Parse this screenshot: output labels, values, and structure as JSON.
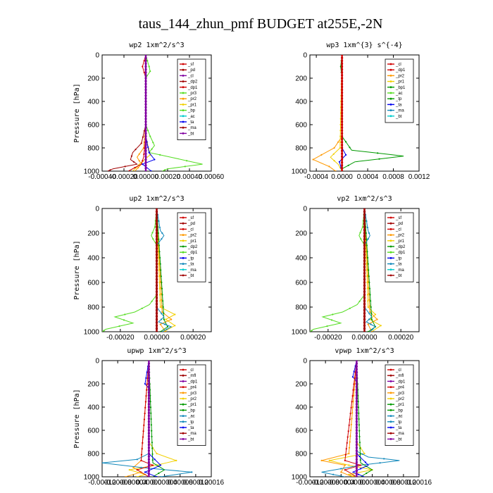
{
  "figure_title": "taus_144_zhun_pmf  BUDGET at255E,-2N",
  "colors": {
    "red": "#d00000",
    "darkred": "#a00000",
    "purple": "#8000a0",
    "orange": "#ff9900",
    "yellow": "#f2d000",
    "lightgreen": "#55dd22",
    "green": "#009900",
    "blue": "#0000ee",
    "teal": "#1188bb",
    "cyan": "#00cccc",
    "black": "#000000"
  },
  "chart_data": [
    {
      "type": "line",
      "title": "wp2  1xm^2/s^3",
      "ylabel": "Pressure [hPa]",
      "xlim": [
        -0.0004,
        0.0006
      ],
      "ylim": [
        1000,
        0
      ],
      "xticks": [
        "-0.00040",
        "-0.00020",
        "0.00000",
        "0.00020",
        "0.00040",
        "0.00060"
      ],
      "yticks": [
        "0",
        "200",
        "400",
        "600",
        "800",
        "1000"
      ],
      "legend": [
        "_sf",
        "_pd",
        "_cl",
        "_dp2",
        "_dp1",
        "_pr3",
        "_pr2",
        "_pr1",
        "_bp",
        "_ac",
        "_ta",
        "_ma",
        "_bt"
      ],
      "legend_position": "top-right",
      "series": [
        {
          "name": "_pr2",
          "color": "orange",
          "p": [
            0,
            600,
            800,
            880,
            940,
            1000
          ],
          "x": [
            0,
            0,
            -2e-05,
            -8e-05,
            -4e-05,
            -0.0001
          ]
        },
        {
          "name": "_pr1",
          "color": "yellow",
          "p": [
            0,
            700,
            860,
            940,
            1000
          ],
          "x": [
            0,
            0,
            4e-05,
            -6e-05,
            -0.00012
          ]
        },
        {
          "name": "_bp",
          "color": "lightgreen",
          "p": [
            0,
            100,
            140,
            200,
            600,
            700,
            780,
            840,
            880,
            940,
            980,
            1000
          ],
          "x": [
            0,
            3e-05,
            4e-05,
            0,
            0,
            4e-05,
            8e-05,
            3e-05,
            0.00023,
            0.00052,
            0.0002,
            0.00015
          ]
        },
        {
          "name": "_dp2",
          "color": "darkred",
          "p": [
            0,
            600,
            760,
            840,
            900,
            940,
            980,
            1000
          ],
          "x": [
            0,
            0,
            -4e-05,
            -0.00012,
            -0.00014,
            -8e-05,
            -0.0003,
            -0.00035
          ]
        },
        {
          "name": "_ta",
          "color": "blue",
          "p": [
            0,
            700,
            840,
            900,
            940,
            1000
          ],
          "x": [
            0,
            0,
            3e-05,
            8e-05,
            -3e-05,
            5e-05
          ]
        },
        {
          "name": "_dp1",
          "color": "red",
          "p": [
            0,
            100,
            200,
            700,
            880,
            940,
            1000
          ],
          "x": [
            0,
            -3e-05,
            0,
            0,
            -2e-05,
            -4e-05,
            -0.00016
          ]
        },
        {
          "name": "_bt",
          "color": "purple",
          "p": [
            0,
            1000
          ],
          "x": [
            0,
            0
          ]
        }
      ]
    },
    {
      "type": "line",
      "title": "wp3  1xm^{3} s^{-4}",
      "ylabel": "",
      "xlim": [
        -0.0005,
        0.0012
      ],
      "ylim": [
        1000,
        0
      ],
      "xticks": [
        "-0.0004",
        "0.0000",
        "0.0004",
        "0.0008",
        "0.0012"
      ],
      "yticks": [
        "0",
        "200",
        "400",
        "600",
        "800",
        "1000"
      ],
      "legend": [
        "_cl",
        "_dp1",
        "_pr2",
        "_pr1",
        "_bp1",
        "_ac",
        "_tp",
        "_ta",
        "_ma",
        "_bt"
      ],
      "legend_position": "top-right",
      "series": [
        {
          "name": "_pr2",
          "color": "orange",
          "p": [
            0,
            700,
            800,
            860,
            900,
            960,
            1000
          ],
          "x": [
            0,
            0,
            -0.00012,
            -0.00032,
            -0.00045,
            -0.0002,
            -0.0001
          ]
        },
        {
          "name": "_pr1",
          "color": "yellow",
          "p": [
            0,
            800,
            880,
            940,
            1000
          ],
          "x": [
            0,
            -3e-05,
            -0.00018,
            -6e-05,
            0
          ]
        },
        {
          "name": "_bp1",
          "color": "green",
          "p": [
            0,
            100,
            200,
            700,
            820,
            870,
            920,
            980,
            1000
          ],
          "x": [
            0,
            -2e-05,
            0,
            0,
            0.00015,
            0.00096,
            0.0002,
            0,
            0
          ]
        },
        {
          "name": "_ta",
          "color": "blue",
          "p": [
            0,
            800,
            860,
            920,
            1000
          ],
          "x": [
            0,
            0,
            6e-05,
            -4e-05,
            0
          ]
        },
        {
          "name": "_dp1",
          "color": "red",
          "p": [
            0,
            1000
          ],
          "x": [
            0,
            0
          ]
        }
      ]
    },
    {
      "type": "line",
      "title": "up2  1xm^2/s^3",
      "ylabel": "Pressure [hPa]",
      "xlim": [
        -0.0003,
        0.0003
      ],
      "ylim": [
        1000,
        0
      ],
      "xticks": [
        "-0.00020",
        "0.00000",
        "0.00020"
      ],
      "yticks": [
        "0",
        "200",
        "400",
        "600",
        "800",
        "1000"
      ],
      "legend": [
        "_sf",
        "_pd",
        "_cl",
        "_pr2",
        "_pr1",
        "_dp2",
        "_dp1",
        "_tp",
        "_ta",
        "_ma",
        "_bt"
      ],
      "legend_position": "top-right",
      "series": [
        {
          "name": "_dp1",
          "color": "lightgreen",
          "p": [
            0,
            150,
            220,
            300,
            700,
            780,
            840,
            880,
            930,
            980,
            1000
          ],
          "x": [
            0,
            -1e-05,
            -3e-05,
            0,
            0,
            -4e-05,
            -0.00012,
            -0.00023,
            -0.00013,
            -0.00028,
            -0.0003
          ]
        },
        {
          "name": "_pr1",
          "color": "yellow",
          "p": [
            0,
            800,
            860,
            900,
            950,
            1000
          ],
          "x": [
            0,
            2e-05,
            0.0001,
            5e-05,
            0.0001,
            4e-05
          ]
        },
        {
          "name": "_pr2",
          "color": "orange",
          "p": [
            0,
            840,
            900,
            940,
            1000
          ],
          "x": [
            0,
            3e-05,
            8e-05,
            2e-05,
            5e-05
          ]
        },
        {
          "name": "_dp2",
          "color": "green",
          "p": [
            0,
            900,
            960,
            1000
          ],
          "x": [
            0,
            4e-05,
            6e-05,
            2e-05
          ]
        },
        {
          "name": "_ta",
          "color": "teal",
          "p": [
            0,
            180,
            220,
            300,
            800,
            880,
            920,
            960,
            1000
          ],
          "x": [
            0,
            2e-05,
            4e-05,
            0,
            0,
            4e-05,
            1e-05,
            8e-05,
            3e-05
          ]
        },
        {
          "name": "_cl",
          "color": "red",
          "p": [
            0,
            1000
          ],
          "x": [
            0,
            0
          ]
        },
        {
          "name": "_bt",
          "color": "darkred",
          "p": [
            0,
            1000
          ],
          "x": [
            0,
            0
          ]
        }
      ]
    },
    {
      "type": "line",
      "title": "vp2  1xm^2/s^3",
      "ylabel": "",
      "xlim": [
        -0.0003,
        0.0003
      ],
      "ylim": [
        1000,
        0
      ],
      "xticks": [
        "-0.00020",
        "0.00000",
        "0.00020"
      ],
      "yticks": [
        "0",
        "200",
        "400",
        "600",
        "800",
        "1000"
      ],
      "legend": [
        "_sf",
        "_pd",
        "_cl",
        "_pr2",
        "_pr1",
        "_dp2",
        "_dp1",
        "_tp",
        "_ta",
        "_ma",
        "_bt"
      ],
      "legend_position": "top-right",
      "series": [
        {
          "name": "_dp1",
          "color": "lightgreen",
          "p": [
            0,
            150,
            220,
            300,
            700,
            780,
            840,
            880,
            930,
            980,
            1000
          ],
          "x": [
            0,
            -1e-05,
            -3e-05,
            0,
            0,
            -4e-05,
            -0.00012,
            -0.00023,
            -0.00013,
            -0.00028,
            -0.0003
          ]
        },
        {
          "name": "_pr1",
          "color": "yellow",
          "p": [
            0,
            800,
            860,
            900,
            950,
            1000
          ],
          "x": [
            0,
            2e-05,
            6e-05,
            3e-05,
            9e-05,
            4e-05
          ]
        },
        {
          "name": "_pr2",
          "color": "orange",
          "p": [
            0,
            840,
            900,
            940,
            1000
          ],
          "x": [
            0,
            3e-05,
            7e-05,
            2e-05,
            4e-05
          ]
        },
        {
          "name": "_dp2",
          "color": "green",
          "p": [
            0,
            900,
            960,
            1000
          ],
          "x": [
            0,
            4e-05,
            6e-05,
            2e-05
          ]
        },
        {
          "name": "_ta",
          "color": "teal",
          "p": [
            0,
            180,
            220,
            300,
            800,
            880,
            920,
            960,
            1000
          ],
          "x": [
            0,
            2e-05,
            3e-05,
            0,
            0,
            4e-05,
            1e-05,
            6e-05,
            3e-05
          ]
        },
        {
          "name": "_cl",
          "color": "red",
          "p": [
            0,
            1000
          ],
          "x": [
            0,
            0
          ]
        },
        {
          "name": "_bt",
          "color": "darkred",
          "p": [
            0,
            1000
          ],
          "x": [
            0,
            0
          ]
        }
      ]
    },
    {
      "type": "line",
      "title": "upwp   1xm^2/s^3",
      "ylabel": "Pressure [hPa]",
      "xlim": [
        -0.00012,
        0.00016
      ],
      "ylim": [
        1000,
        0
      ],
      "xticks": [
        "-0.00012",
        "-0.00008",
        "-0.00004",
        "0.00000",
        "0.00004",
        "0.00008",
        "0.00012",
        "0.00016"
      ],
      "yticks": [
        "0",
        "200",
        "400",
        "600",
        "800",
        "1000"
      ],
      "legend": [
        "_cl",
        "_mfl",
        "_dp1",
        "_pr4",
        "_pr3",
        "_pr2",
        "_pr1",
        "_bp",
        "_ac",
        "_tp",
        "_ta",
        "_ma",
        "_bt"
      ],
      "legend_position": "top-right",
      "series": [
        {
          "name": "_pr2",
          "color": "yellow",
          "p": [
            0,
            700,
            800,
            860,
            900,
            940,
            980,
            1000
          ],
          "x": [
            0,
            0,
            2e-05,
            7e-05,
            2e-05,
            -5e-05,
            -1e-05,
            -3e-05
          ]
        },
        {
          "name": "_pr3",
          "color": "orange",
          "p": [
            0,
            860,
            920,
            960,
            1000
          ],
          "x": [
            0,
            -2e-05,
            -4e-05,
            -2e-05,
            -6e-05
          ]
        },
        {
          "name": "_tp",
          "color": "teal",
          "p": [
            0,
            800,
            850,
            880,
            920,
            960,
            1000
          ],
          "x": [
            0,
            0,
            -3e-05,
            -0.00012,
            -2e-05,
            0.00011,
            3e-05
          ]
        },
        {
          "name": "_bp",
          "color": "green",
          "p": [
            0,
            880,
            940,
            1000
          ],
          "x": [
            0,
            1e-05,
            4e-05,
            1e-05
          ]
        },
        {
          "name": "_ta",
          "color": "blue",
          "p": [
            0,
            200,
            240,
            800,
            900,
            960,
            1000
          ],
          "x": [
            0,
            -1e-05,
            0,
            0,
            3e-05,
            -1e-05,
            2e-05
          ]
        },
        {
          "name": "_pr4",
          "color": "red",
          "p": [
            0,
            860,
            900,
            940,
            1000
          ],
          "x": [
            0,
            -2e-05,
            1e-05,
            -3e-05,
            0
          ]
        },
        {
          "name": "_bt",
          "color": "purple",
          "p": [
            0,
            1000
          ],
          "x": [
            0,
            0
          ]
        }
      ]
    },
    {
      "type": "line",
      "title": "vpwp   1xm^2/s^3",
      "ylabel": "",
      "xlim": [
        -0.00012,
        0.00016
      ],
      "ylim": [
        1000,
        0
      ],
      "xticks": [
        "-0.00012",
        "-0.00008",
        "-0.00004",
        "0.00000",
        "0.00004",
        "0.00008",
        "0.00012",
        "0.00016"
      ],
      "yticks": [
        "0",
        "200",
        "400",
        "600",
        "800",
        "1000"
      ],
      "legend": [
        "_cl",
        "_mfl",
        "_dp1",
        "_pr4",
        "_pr3",
        "_pr2",
        "_pr1",
        "_bp",
        "_ac",
        "_tp",
        "_ta",
        "_ma",
        "_bt"
      ],
      "legend_position": "top-right",
      "series": [
        {
          "name": "_pr2",
          "color": "yellow",
          "p": [
            0,
            700,
            800,
            860,
            900,
            940,
            980,
            1000
          ],
          "x": [
            0,
            0,
            2e-05,
            -7e-05,
            -2e-05,
            4e-05,
            -2e-05,
            0
          ]
        },
        {
          "name": "_pr3",
          "color": "orange",
          "p": [
            0,
            800,
            860,
            900,
            960,
            1000
          ],
          "x": [
            0,
            -2e-05,
            -9e-05,
            -3e-05,
            -4e-05,
            -1e-05
          ]
        },
        {
          "name": "_tp",
          "color": "teal",
          "p": [
            0,
            780,
            830,
            860,
            900,
            960,
            1000
          ],
          "x": [
            0,
            0,
            3e-05,
            0.00011,
            1e-05,
            -9e-05,
            -3e-05
          ]
        },
        {
          "name": "_bp",
          "color": "green",
          "p": [
            0,
            880,
            940,
            1000
          ],
          "x": [
            0,
            1e-05,
            4e-05,
            1e-05
          ]
        },
        {
          "name": "_ta",
          "color": "blue",
          "p": [
            0,
            140,
            180,
            800,
            900,
            960,
            1000
          ],
          "x": [
            0,
            -1e-05,
            0,
            0,
            3e-05,
            -1e-05,
            2e-05
          ]
        },
        {
          "name": "_pr4",
          "color": "red",
          "p": [
            0,
            860,
            900,
            940,
            1000
          ],
          "x": [
            0,
            -3e-05,
            1e-05,
            -3e-05,
            0
          ]
        },
        {
          "name": "_bt",
          "color": "purple",
          "p": [
            0,
            1000
          ],
          "x": [
            0,
            0
          ]
        }
      ]
    }
  ]
}
